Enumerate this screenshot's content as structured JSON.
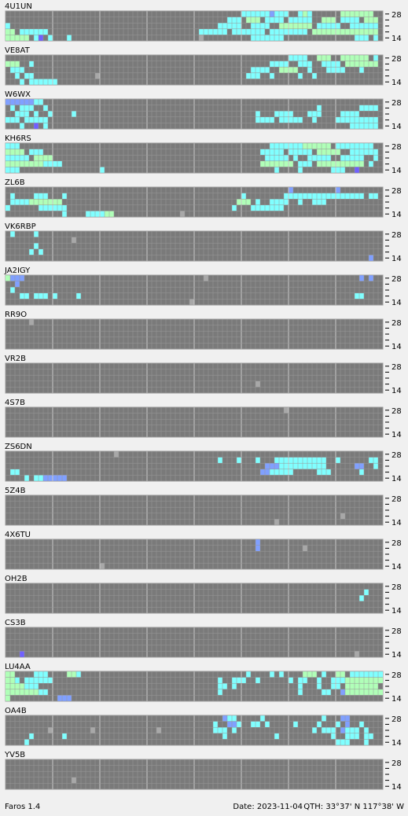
{
  "colors": {
    "c": "#80ffff",
    "g": "#b0ffb8",
    "b": "#80a0ff",
    "v": "#7060ff",
    "x": "#a8a8a8"
  },
  "band_labels": [
    "28",
    "14"
  ],
  "stations": [
    {
      "name": "4U1UN",
      "rows": [
        "50-55c 56b 57-59c 62c 63g 64c 71-77g",
        "47-49c 51-53g 55-58c 60-64c 67-69g 71-74c 76-78g",
        "0c 45-49c 52-55c 58-64g 66-70c 73-78c",
        "0-1g 3-8c 41-46c 48-54c 56-63c 65-78g",
        "0-4g 6c 7v 9c 13c 41x 52-58c 74-76c 78c"
      ]
    },
    {
      "name": "VE8AT",
      "rows": [
        "60-63c 66-68g 71-76g 78c",
        "0-2g 5c 56-59c 62-64c 67-70c 72-78g",
        "1-3c 52-55c 58-61g 64c 68-71c 75c",
        "2c 4-5c 19x 51-53c 56c 62c 65c",
        "3c 5-10c"
      ]
    },
    {
      "name": "W6WX",
      "rows": [
        "0-5b 6-7c",
        "1c 3-5c 8c 66c 75-78c",
        "2-4c 6c 9c 14c 53c 57-60c 64-66c 71-74c",
        "0-2c 4-8c 53-56c 58-62c 65c 70-78c",
        "3c 6v 8c 73-78c"
      ]
    },
    {
      "name": "KH6RS",
      "rows": [
        "0-2c 56-62c 63-68g 70-77c",
        "0-3g 5-7c 54-58c 60-64c 66-70g 73-78c",
        "0-4c 6-9g 55-59c 61c 64-68c 71-75c 78c",
        "0-7g 8-11c 54-60g 62-64c 66-75g 77c",
        "0-2c 20c 57c 62c 69-71c 74v"
      ]
    },
    {
      "name": "ZL6B",
      "rows": [
        "60b 70b",
        "1c 6-8c 12c 50c 59-75c 77-78c",
        "1-4c 5-11g 49-51g 53c 56-59c 62c 65-67c",
        "0c 7-12c 48c 52-58c",
        "12c 17-20c 21-22g 37x"
      ]
    },
    {
      "name": "VK6RBP",
      "rows": [
        "1c 6c",
        "14x",
        "6c",
        "5c 7c",
        "77b"
      ]
    },
    {
      "name": "JA2IGY",
      "rows": [
        "0g 1-3b 42x 75b 77b",
        "2b",
        "1c",
        "3-4c 6-8c 10c 15c 74-75c",
        "39x"
      ]
    },
    {
      "name": "RR9O",
      "rows": [
        "5x",
        "",
        "",
        "",
        ""
      ]
    },
    {
      "name": "VR2B",
      "rows": [
        "",
        "",
        "",
        "53x",
        ""
      ]
    },
    {
      "name": "4S7B",
      "rows": [
        "59x",
        "",
        "",
        "",
        ""
      ]
    },
    {
      "name": "ZS6DN",
      "rows": [
        "23x",
        "45c 49c 53c 57-67c 70c 77-78c",
        "55-57b 58-67c 74-75b 78c",
        "1-2c 54-55b 56-60c 66-68c 75c",
        "4c 6-7c 8-12b"
      ]
    },
    {
      "name": "5Z4B",
      "rows": [
        "",
        "",
        "",
        "71x",
        "57x"
      ]
    },
    {
      "name": "4X6TU",
      "rows": [
        "53b",
        "53b 63x",
        "",
        "",
        "20x"
      ]
    },
    {
      "name": "OH2B",
      "rows": [
        "",
        "76c",
        "75c",
        "",
        ""
      ]
    },
    {
      "name": "CS3B",
      "rows": [
        "",
        "",
        "",
        "",
        "3v 74x"
      ]
    },
    {
      "name": "LU4AA",
      "rows": [
        "0-1g 6-8c 13-14g 15c 51c 56c 58c 63-65g 67c 70-71g 73-79c",
        "0-1g 2c 4-9c 45c 48-50c 53c 60c 62-63c 66c 69-71c 72-79g",
        "0-3g 4-6c 45-46c 48c 62c 66c 69-70c 72-78g",
        "0-6g 7-8c 45c 62c 67-68c 71b 72-79g",
        "0g 11-13b"
      ]
    },
    {
      "name": "OA4B",
      "rows": [
        "46b 47-48c 54c 67c 71-72b",
        "44c 47-48b 49c 52-53c 55c 61c 66c 70c 72b 75c",
        "9x 18x 32x 44-46c 48c 65c 67-69c 71b 72-74c 76c",
        "5c 12c 46c 57c 69c 72-74c 76-77c",
        "4c 70-72c 76c"
      ]
    },
    {
      "name": "YV5B",
      "rows": [
        "",
        "",
        "",
        "14x",
        ""
      ]
    }
  ],
  "footer": {
    "app": "Faros 1.4",
    "date": "Date: 2023-11-04",
    "qth": "QTH: 33°37' N  117°38' W"
  }
}
